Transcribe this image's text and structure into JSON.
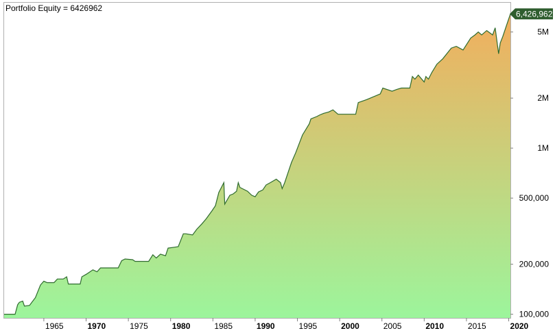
{
  "chart_data": {
    "type": "area",
    "title": "Portfolio Equity = 6426962",
    "last_value_label": "6,426,962",
    "y_scale": "log",
    "ylim": [
      95000,
      7500000
    ],
    "xlim": [
      1960.3,
      2020.2
    ],
    "x_ticks": [
      {
        "value": 1965,
        "label": "1965",
        "bold": false
      },
      {
        "value": 1970,
        "label": "1970",
        "bold": true
      },
      {
        "value": 1975,
        "label": "1975",
        "bold": false
      },
      {
        "value": 1980,
        "label": "1980",
        "bold": true
      },
      {
        "value": 1985,
        "label": "1985",
        "bold": false
      },
      {
        "value": 1990,
        "label": "1990",
        "bold": true
      },
      {
        "value": 1995,
        "label": "1995",
        "bold": false
      },
      {
        "value": 2000,
        "label": "2000",
        "bold": true
      },
      {
        "value": 2005,
        "label": "2005",
        "bold": false
      },
      {
        "value": 2010,
        "label": "2010",
        "bold": true
      },
      {
        "value": 2015,
        "label": "2015",
        "bold": false
      },
      {
        "value": 2020,
        "label": "2020",
        "bold": true
      }
    ],
    "y_ticks": [
      {
        "value": 100000,
        "label": "100,000"
      },
      {
        "value": 200000,
        "label": "200,000"
      },
      {
        "value": 500000,
        "label": "500,000"
      },
      {
        "value": 1000000,
        "label": "1M"
      },
      {
        "value": 2000000,
        "label": "2M"
      },
      {
        "value": 5000000,
        "label": "5M"
      }
    ],
    "series": [
      {
        "x": [
          1960.3,
          1961.6,
          1961.9,
          1962.1,
          1962.5,
          1962.7,
          1963.3,
          1964.0,
          1964.6,
          1965.0,
          1965.4,
          1966.2,
          1966.6,
          1967.3,
          1967.7,
          1967.9,
          1969.3,
          1969.5,
          1970.1,
          1970.8,
          1971.3,
          1971.7,
          1973.8,
          1974.2,
          1974.6,
          1975.5,
          1975.8,
          1977.4,
          1977.9,
          1978.3,
          1978.8,
          1979.4,
          1979.7,
          1980.9,
          1981.5,
          1981.8,
          1982.6,
          1983.1,
          1983.7,
          1984.2,
          1984.9,
          1985.3,
          1985.7,
          1986.3,
          1986.4,
          1987.0,
          1987.4,
          1987.8,
          1988.0,
          1988.2,
          1989.1,
          1989.6,
          1990.0,
          1990.4,
          1990.9,
          1991.3,
          1991.8,
          1992.5,
          1993.0,
          1993.2,
          1993.5,
          1994.0,
          1994.3,
          1994.8,
          1995.6,
          1996.4,
          1996.6,
          1997.3,
          1997.6,
          1998.1,
          1998.7,
          1999.2,
          1999.8,
          2000.2,
          2001.9,
          2002.2,
          2003.2,
          2004.8,
          2005.1,
          2006.2,
          2006.8,
          2007.3,
          2008.3,
          2008.6,
          2008.9,
          2009.3,
          2010.0,
          2010.2,
          2010.5,
          2010.9,
          2011.5,
          2012.2,
          2013.2,
          2013.8,
          2014.6,
          2015.5,
          2016.0,
          2016.4,
          2016.8,
          2017.4,
          2018.1,
          2018.4,
          2018.8,
          2019.0,
          2019.3,
          2019.7,
          2020.2
        ],
        "y": [
          100000,
          100000,
          114000,
          118000,
          120000,
          112000,
          113000,
          126000,
          150000,
          158000,
          155000,
          155000,
          163000,
          163000,
          168000,
          152000,
          152000,
          168000,
          175000,
          185000,
          180000,
          190000,
          190000,
          210000,
          215000,
          213000,
          208000,
          208000,
          228000,
          218000,
          230000,
          225000,
          250000,
          255000,
          305000,
          305000,
          300000,
          325000,
          350000,
          375000,
          420000,
          450000,
          540000,
          620000,
          460000,
          520000,
          530000,
          550000,
          620000,
          580000,
          550000,
          520000,
          510000,
          545000,
          560000,
          600000,
          620000,
          650000,
          620000,
          570000,
          620000,
          740000,
          820000,
          940000,
          1200000,
          1400000,
          1500000,
          1550000,
          1580000,
          1620000,
          1650000,
          1700000,
          1600000,
          1600000,
          1600000,
          1880000,
          1960000,
          2120000,
          2300000,
          2200000,
          2260000,
          2300000,
          2300000,
          2700000,
          2600000,
          2750000,
          2500000,
          2700000,
          2600000,
          2850000,
          3200000,
          3450000,
          4000000,
          4100000,
          3900000,
          4600000,
          4800000,
          5000000,
          4800000,
          5100000,
          4800000,
          5300000,
          3700000,
          4300000,
          4700000,
          5400000,
          6426962
        ]
      }
    ]
  },
  "colors": {
    "fill_top": "#f2ae5d",
    "fill_bottom": "#9cf59c",
    "line": "#2e6b2e",
    "label_bg": "#2e5d2e",
    "axis": "#808080"
  }
}
